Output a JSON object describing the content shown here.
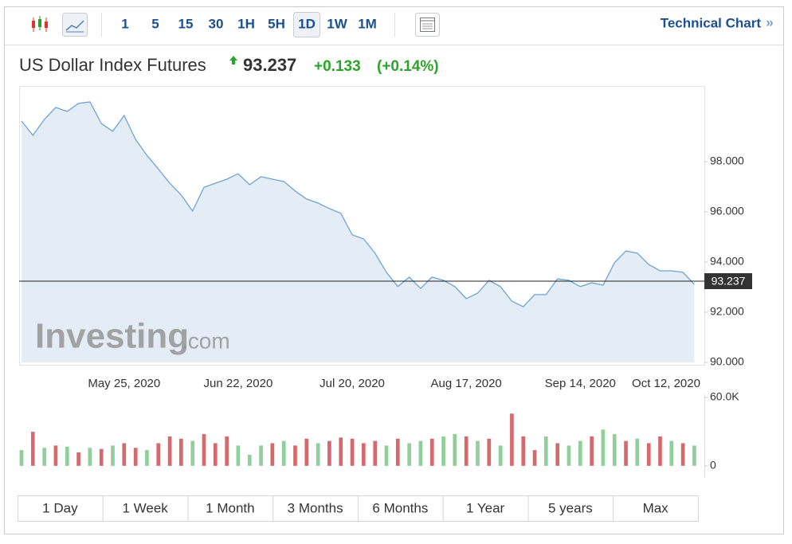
{
  "toolbar": {
    "intervals": [
      "1",
      "5",
      "15",
      "30",
      "1H",
      "5H",
      "1D",
      "1W",
      "1M"
    ],
    "selected": "1D",
    "link": "Technical Chart",
    "link_arrow": "»"
  },
  "header": {
    "title": "US Dollar Index Futures",
    "price": 93.237,
    "change": "+0.133",
    "change_pct": "(+0.14%)"
  },
  "watermark": [
    "Investing",
    ".com"
  ],
  "chart_data": [
    {
      "type": "area",
      "color": "#6fa3d6",
      "fill": "#e4edf5",
      "categories": [
        null,
        null,
        null,
        null,
        null,
        null,
        null,
        null,
        null,
        "May 25, 2020",
        null,
        null,
        null,
        null,
        null,
        null,
        null,
        null,
        null,
        "Jun 22, 2020",
        null,
        null,
        null,
        null,
        null,
        null,
        null,
        null,
        null,
        "Jul 20, 2020",
        null,
        null,
        null,
        null,
        null,
        null,
        null,
        null,
        null,
        "Aug 17, 2020",
        null,
        null,
        null,
        null,
        null,
        null,
        null,
        null,
        null,
        "Sep 14, 2020",
        null,
        null,
        null,
        null,
        null,
        null,
        null,
        null,
        null,
        "Oct 12, 2020"
      ],
      "values": [
        99.62,
        99.05,
        99.68,
        100.16,
        100.0,
        100.32,
        100.38,
        99.52,
        99.21,
        99.84,
        98.89,
        98.25,
        97.71,
        97.14,
        96.67,
        96.03,
        96.98,
        97.14,
        97.3,
        97.52,
        97.08,
        97.4,
        97.3,
        97.21,
        96.83,
        96.51,
        96.35,
        96.13,
        95.94,
        95.08,
        94.92,
        94.35,
        93.59,
        93.02,
        93.4,
        92.95,
        93.4,
        93.27,
        93.02,
        92.54,
        92.76,
        93.27,
        93.02,
        92.44,
        92.22,
        92.7,
        92.7,
        93.33,
        93.27,
        93.02,
        93.17,
        93.08,
        93.97,
        94.44,
        94.35,
        93.9,
        93.65,
        93.65,
        93.59,
        93.11
      ],
      "ylim": [
        90,
        100.95
      ],
      "yticks": [
        {
          "value": 90,
          "label": "90.000"
        },
        {
          "value": 92,
          "label": "92.000"
        },
        {
          "value": 94,
          "label": "94.000"
        },
        {
          "value": 96,
          "label": "96.000"
        },
        {
          "value": 98,
          "label": "98.000"
        }
      ]
    },
    {
      "type": "bar",
      "values": [
        14000,
        30000,
        16000,
        18000,
        17000,
        12000,
        16000,
        15000,
        18000,
        20000,
        16000,
        14000,
        20000,
        26000,
        24000,
        22000,
        28000,
        20000,
        26000,
        18000,
        10000,
        18000,
        20000,
        22000,
        18000,
        24000,
        20000,
        22000,
        25000,
        24000,
        20000,
        22000,
        18000,
        24000,
        20000,
        22000,
        24000,
        26000,
        28000,
        26000,
        22000,
        24000,
        18000,
        46000,
        26000,
        14000,
        26000,
        20000,
        18000,
        22000,
        26000,
        32000,
        28000,
        22000,
        24000,
        20000,
        26000,
        22000,
        20000,
        18000
      ],
      "colors": [
        "#90cf9c",
        "#d56a6e",
        "#90cf9c",
        "#d56a6e",
        "#90cf9c",
        "#d56a6e",
        "#90cf9c",
        "#d56a6e",
        "#90cf9c",
        "#d56a6e",
        "#d56a6e",
        "#90cf9c",
        "#d56a6e",
        "#d56a6e",
        "#d56a6e",
        "#90cf9c",
        "#d56a6e",
        "#d56a6e",
        "#d56a6e",
        "#90cf9c",
        "#90cf9c",
        "#90cf9c",
        "#d56a6e",
        "#90cf9c",
        "#d56a6e",
        "#d56a6e",
        "#90cf9c",
        "#d56a6e",
        "#d56a6e",
        "#d56a6e",
        "#d56a6e",
        "#d56a6e",
        "#90cf9c",
        "#d56a6e",
        "#90cf9c",
        "#90cf9c",
        "#d56a6e",
        "#90cf9c",
        "#90cf9c",
        "#d56a6e",
        "#90cf9c",
        "#d56a6e",
        "#90cf9c",
        "#d56a6e",
        "#d56a6e",
        "#d56a6e",
        "#90cf9c",
        "#d56a6e",
        "#90cf9c",
        "#90cf9c",
        "#d56a6e",
        "#90cf9c",
        "#90cf9c",
        "#d56a6e",
        "#90cf9c",
        "#d56a6e",
        "#d56a6e",
        "#90cf9c",
        "#d56a6e",
        "#90cf9c"
      ],
      "ylim": [
        0,
        60000
      ],
      "yticks": [
        0,
        {
          "value": 60000,
          "label": "60.0K"
        }
      ]
    }
  ],
  "ranges": [
    "1 Day",
    "1 Week",
    "1 Month",
    "3 Months",
    "6 Months",
    "1 Year",
    "5 years",
    "Max"
  ]
}
